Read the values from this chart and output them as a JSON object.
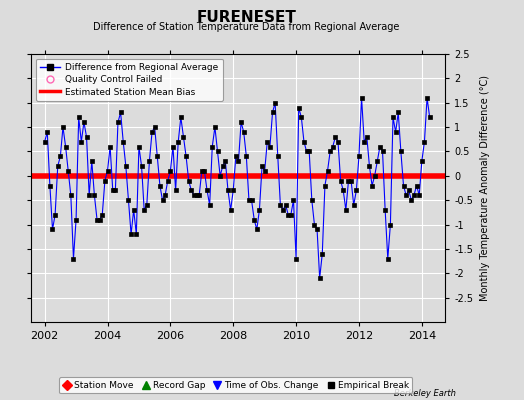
{
  "title": "FURENESET",
  "subtitle": "Difference of Station Temperature Data from Regional Average",
  "ylabel": "Monthly Temperature Anomaly Difference (°C)",
  "mean_bias": 0.0,
  "line_color": "#0000FF",
  "bias_color": "#FF0000",
  "marker_color": "#000000",
  "background_color": "#DCDCDC",
  "plot_bg_color": "#DCDCDC",
  "berkeley_earth_text": "Berkeley Earth",
  "ylim_bottom": -3.0,
  "ylim_top": 2.5,
  "yticks": [
    -2.5,
    -2,
    -1.5,
    -1,
    -0.5,
    0,
    0.5,
    1,
    1.5,
    2,
    2.5
  ],
  "ytick_labels": [
    "-2.5",
    "-2",
    "-1.5",
    "-1",
    "-0.5",
    "0",
    "0.5",
    "1",
    "1.5",
    "2",
    "2.5"
  ],
  "xlim_left": 2001.58,
  "xlim_right": 2014.75,
  "xticks": [
    2002,
    2004,
    2006,
    2008,
    2010,
    2012,
    2014
  ],
  "data_x": [
    2002.0,
    2002.083,
    2002.167,
    2002.25,
    2002.333,
    2002.417,
    2002.5,
    2002.583,
    2002.667,
    2002.75,
    2002.833,
    2002.917,
    2003.0,
    2003.083,
    2003.167,
    2003.25,
    2003.333,
    2003.417,
    2003.5,
    2003.583,
    2003.667,
    2003.75,
    2003.833,
    2003.917,
    2004.0,
    2004.083,
    2004.167,
    2004.25,
    2004.333,
    2004.417,
    2004.5,
    2004.583,
    2004.667,
    2004.75,
    2004.833,
    2004.917,
    2005.0,
    2005.083,
    2005.167,
    2005.25,
    2005.333,
    2005.417,
    2005.5,
    2005.583,
    2005.667,
    2005.75,
    2005.833,
    2005.917,
    2006.0,
    2006.083,
    2006.167,
    2006.25,
    2006.333,
    2006.417,
    2006.5,
    2006.583,
    2006.667,
    2006.75,
    2006.833,
    2006.917,
    2007.0,
    2007.083,
    2007.167,
    2007.25,
    2007.333,
    2007.417,
    2007.5,
    2007.583,
    2007.667,
    2007.75,
    2007.833,
    2007.917,
    2008.0,
    2008.083,
    2008.167,
    2008.25,
    2008.333,
    2008.417,
    2008.5,
    2008.583,
    2008.667,
    2008.75,
    2008.833,
    2008.917,
    2009.0,
    2009.083,
    2009.167,
    2009.25,
    2009.333,
    2009.417,
    2009.5,
    2009.583,
    2009.667,
    2009.75,
    2009.833,
    2009.917,
    2010.0,
    2010.083,
    2010.167,
    2010.25,
    2010.333,
    2010.417,
    2010.5,
    2010.583,
    2010.667,
    2010.75,
    2010.833,
    2010.917,
    2011.0,
    2011.083,
    2011.167,
    2011.25,
    2011.333,
    2011.417,
    2011.5,
    2011.583,
    2011.667,
    2011.75,
    2011.833,
    2011.917,
    2012.0,
    2012.083,
    2012.167,
    2012.25,
    2012.333,
    2012.417,
    2012.5,
    2012.583,
    2012.667,
    2012.75,
    2012.833,
    2012.917,
    2013.0,
    2013.083,
    2013.167,
    2013.25,
    2013.333,
    2013.417,
    2013.5,
    2013.583,
    2013.667,
    2013.75,
    2013.833,
    2013.917,
    2014.0,
    2014.083,
    2014.167,
    2014.25
  ],
  "data_y": [
    0.7,
    0.9,
    -0.2,
    -1.1,
    -0.8,
    0.2,
    0.4,
    1.0,
    0.6,
    0.1,
    -0.4,
    -1.7,
    -0.9,
    1.2,
    0.7,
    1.1,
    0.8,
    -0.4,
    0.3,
    -0.4,
    -0.9,
    -0.9,
    -0.8,
    -0.1,
    0.1,
    0.6,
    -0.3,
    -0.3,
    1.1,
    1.3,
    0.7,
    0.2,
    -0.5,
    -1.2,
    -0.7,
    -1.2,
    0.6,
    0.2,
    -0.7,
    -0.6,
    0.3,
    0.9,
    1.0,
    0.4,
    -0.2,
    -0.5,
    -0.4,
    -0.1,
    0.1,
    0.6,
    -0.3,
    0.7,
    1.2,
    0.8,
    0.4,
    -0.1,
    -0.3,
    -0.4,
    -0.4,
    -0.4,
    0.1,
    0.1,
    -0.3,
    -0.6,
    0.6,
    1.0,
    0.5,
    0.0,
    0.2,
    0.3,
    -0.3,
    -0.7,
    -0.3,
    0.4,
    0.3,
    1.1,
    0.9,
    0.4,
    -0.5,
    -0.5,
    -0.9,
    -1.1,
    -0.7,
    0.2,
    0.1,
    0.7,
    0.6,
    1.3,
    1.5,
    0.4,
    -0.6,
    -0.7,
    -0.6,
    -0.8,
    -0.8,
    -0.5,
    -1.7,
    1.4,
    1.2,
    0.7,
    0.5,
    0.5,
    -0.5,
    -1.0,
    -1.1,
    -2.1,
    -1.6,
    -0.2,
    0.1,
    0.5,
    0.6,
    0.8,
    0.7,
    -0.1,
    -0.3,
    -0.7,
    -0.1,
    -0.1,
    -0.6,
    -0.3,
    0.4,
    1.6,
    0.7,
    0.8,
    0.2,
    -0.2,
    0.0,
    0.3,
    0.6,
    0.5,
    -0.7,
    -1.7,
    -1.0,
    1.2,
    0.9,
    1.3,
    0.5,
    -0.2,
    -0.4,
    -0.3,
    -0.5,
    -0.4,
    -0.2,
    -0.4,
    0.3,
    0.7,
    1.6,
    1.2
  ]
}
